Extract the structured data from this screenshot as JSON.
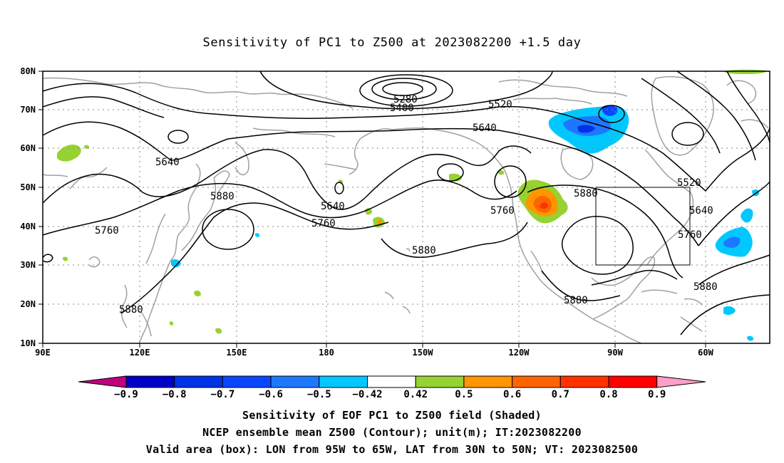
{
  "title": "Sensitivity of PC1 to Z500 at 2023082200 +1.5 day",
  "lat_labels": [
    "80N",
    "70N",
    "60N",
    "50N",
    "40N",
    "30N",
    "20N",
    "10N"
  ],
  "lon_labels": [
    "90E",
    "120E",
    "150E",
    "180",
    "150W",
    "120W",
    "90W",
    "60W"
  ],
  "contour_labels": [
    "5280",
    "5400",
    "5520",
    "5640",
    "5640",
    "5640",
    "5760",
    "5760",
    "5760",
    "5880",
    "5880",
    "5880",
    "5880",
    "5880",
    "5520",
    "5640",
    "5760",
    "5880"
  ],
  "colorbar": {
    "labels": [
      "-0.9",
      "-0.8",
      "-0.7",
      "-0.6",
      "-0.5",
      "-0.42",
      "0.42",
      "0.5",
      "0.6",
      "0.7",
      "0.8",
      "0.9"
    ],
    "colors": [
      "#c0007f",
      "#0000c8",
      "#0032e6",
      "#0a46ff",
      "#1e78ff",
      "#00c8ff",
      "#ffffff",
      "#96d232",
      "#ff9600",
      "#ff6400",
      "#ff3200",
      "#ff0000",
      "#ff9ec8"
    ]
  },
  "captions": [
    "Sensitivity of EOF PC1 to Z500 field (Shaded)",
    "NCEP ensemble mean Z500 (Contour); unit(m); IT:2023082200",
    "Valid area (box): LON from 95W to 65W, LAT from 30N to 50N; VT: 2023082500"
  ]
}
